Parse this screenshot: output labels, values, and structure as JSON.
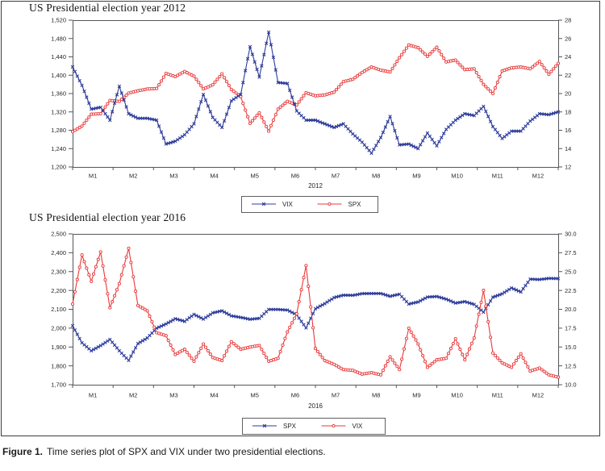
{
  "figure": {
    "caption_label": "Figure 1.",
    "caption_text": "Time series plot of SPX and VIX under two presidential elections."
  },
  "colors": {
    "blue": "#2e3d9a",
    "red": "#e8393a"
  },
  "chart_data": [
    {
      "type": "line",
      "title": "US Presidential election year 2012",
      "xlabel": "2012",
      "x_ticks": [
        "M1",
        "M2",
        "M3",
        "M4",
        "M5",
        "M6",
        "M7",
        "M8",
        "M9",
        "M10",
        "M11",
        "M12"
      ],
      "y_left": {
        "min": 1200,
        "max": 1520,
        "tick_labels": [
          "1,520",
          "1,480",
          "1,440",
          "1,400",
          "1,360",
          "1,320",
          "1,280",
          "1,240",
          "1,200"
        ]
      },
      "y_right": {
        "min": 12,
        "max": 28,
        "tick_labels": [
          "28",
          "26",
          "24",
          "22",
          "20",
          "18",
          "16",
          "14",
          "12"
        ]
      },
      "legend": [
        {
          "label": "VIX",
          "color": "blue",
          "marker": "x"
        },
        {
          "label": "SPX",
          "color": "red",
          "marker": "o"
        }
      ],
      "series": [
        {
          "name": "SPX",
          "axis": "left",
          "color": "red",
          "marker": "o",
          "values": [
            1277,
            1289,
            1315,
            1316,
            1345,
            1343,
            1361,
            1366,
            1370,
            1371,
            1404,
            1397,
            1408,
            1398,
            1370,
            1379,
            1403,
            1369,
            1353,
            1295,
            1318,
            1278,
            1326,
            1343,
            1335,
            1362,
            1355,
            1357,
            1363,
            1386,
            1391,
            1406,
            1418,
            1411,
            1407,
            1438,
            1466,
            1460,
            1441,
            1461,
            1429,
            1433,
            1412,
            1414,
            1380,
            1360,
            1409,
            1416,
            1418,
            1414,
            1430,
            1402,
            1426
          ]
        },
        {
          "name": "VIX",
          "axis": "right",
          "color": "blue",
          "marker": "x",
          "values": [
            22.9,
            20.9,
            18.3,
            18.5,
            17.1,
            20.8,
            17.8,
            17.3,
            17.3,
            17.1,
            14.5,
            14.8,
            15.5,
            16.7,
            19.9,
            17.4,
            16.3,
            19.2,
            19.9,
            25.1,
            21.8,
            26.7,
            21.2,
            21.1,
            18.1,
            17.1,
            17.1,
            16.7,
            16.3,
            16.7,
            15.6,
            14.7,
            13.5,
            15.2,
            17.5,
            14.4,
            14.5,
            14.0,
            15.7,
            14.3,
            16.1,
            17.1,
            17.8,
            17.6,
            18.6,
            16.4,
            15.1,
            15.9,
            15.9,
            17.0,
            17.8,
            17.7,
            18.0
          ]
        }
      ]
    },
    {
      "type": "line",
      "title": "US Presidential election year 2016",
      "xlabel": "2016",
      "x_ticks": [
        "M1",
        "M2",
        "M3",
        "M4",
        "M5",
        "M6",
        "M7",
        "M8",
        "M9",
        "M10",
        "M11",
        "M12"
      ],
      "y_left": {
        "min": 1700,
        "max": 2500,
        "tick_labels": [
          "2,500",
          "2,400",
          "2,300",
          "2,200",
          "2,100",
          "2,000",
          "1,900",
          "1,800",
          "1,700"
        ]
      },
      "y_right": {
        "min": 10,
        "max": 30,
        "tick_labels": [
          "30.0",
          "27.5",
          "25.0",
          "22.5",
          "20.0",
          "17.5",
          "15.0",
          "12.5",
          "10.0"
        ]
      },
      "legend": [
        {
          "label": "SPX",
          "color": "blue",
          "marker": "x"
        },
        {
          "label": "VIX",
          "color": "red",
          "marker": "o"
        }
      ],
      "series": [
        {
          "name": "SPX",
          "axis": "left",
          "color": "blue",
          "marker": "x",
          "values": [
            2013,
            1922,
            1880,
            1907,
            1940,
            1880,
            1829,
            1918,
            1948,
            2000,
            2022,
            2050,
            2036,
            2073,
            2048,
            2081,
            2092,
            2065,
            2057,
            2047,
            2052,
            2099,
            2099,
            2096,
            2071,
            2001,
            2103,
            2130,
            2162,
            2175,
            2174,
            2183,
            2184,
            2184,
            2169,
            2180,
            2128,
            2139,
            2165,
            2168,
            2154,
            2133,
            2141,
            2126,
            2085,
            2164,
            2182,
            2213,
            2192,
            2260,
            2258,
            2264,
            2263
          ]
        },
        {
          "name": "VIX",
          "axis": "right",
          "color": "red",
          "marker": "o",
          "values": [
            20.7,
            27.2,
            23.7,
            27.6,
            20.2,
            23.4,
            28.1,
            20.5,
            19.8,
            16.9,
            16.5,
            14.0,
            14.7,
            13.1,
            15.4,
            13.6,
            13.2,
            15.7,
            14.7,
            15.0,
            15.2,
            13.1,
            13.5,
            17.0,
            19.4,
            25.8,
            14.8,
            13.2,
            12.7,
            12.0,
            11.9,
            11.4,
            11.6,
            11.3,
            13.7,
            12.0,
            17.5,
            15.4,
            12.3,
            13.3,
            13.5,
            16.1,
            13.3,
            16.2,
            22.5,
            14.2,
            12.9,
            12.3,
            14.1,
            11.8,
            12.2,
            11.3,
            11.0
          ]
        }
      ]
    }
  ]
}
